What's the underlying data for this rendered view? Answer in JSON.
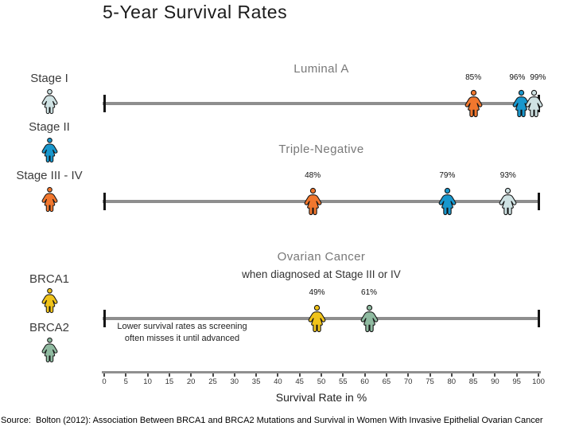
{
  "title": "5-Year Survival Rates",
  "legend": {
    "items": [
      {
        "label": "Stage I",
        "color": "#cfe2e3"
      },
      {
        "label": "Stage II",
        "color": "#1897cd"
      },
      {
        "label": "Stage III - IV",
        "color": "#f1772e"
      },
      {
        "label": "BRCA1",
        "color": "#f0c31a"
      },
      {
        "label": "BRCA2",
        "color": "#8fbaa0"
      }
    ]
  },
  "axis": {
    "min": 0,
    "max": 100,
    "step": 5,
    "label": "Survival Rate in %"
  },
  "chart_data": {
    "type": "scatter",
    "title": "5-Year Survival Rates",
    "xlabel": "Survival Rate in %",
    "xlim": [
      0,
      100
    ],
    "tick_step": 5,
    "grid": false,
    "legend_position": "left",
    "groups": [
      {
        "name": "Stage I",
        "color": "#cfe2e3"
      },
      {
        "name": "Stage II",
        "color": "#1897cd"
      },
      {
        "name": "Stage III - IV",
        "color": "#f1772e"
      },
      {
        "name": "BRCA1",
        "color": "#f0c31a"
      },
      {
        "name": "BRCA2",
        "color": "#8fbaa0"
      }
    ],
    "rows": [
      {
        "title": "Luminal A",
        "subtitle": "",
        "annotation": [],
        "points": [
          {
            "group": "Stage III - IV",
            "value": 85,
            "label": "85%"
          },
          {
            "group": "Stage II",
            "value": 96,
            "label": "96%"
          },
          {
            "group": "Stage I",
            "value": 99,
            "label": "99%"
          }
        ]
      },
      {
        "title": "Triple-Negative",
        "subtitle": "",
        "annotation": [],
        "points": [
          {
            "group": "Stage III - IV",
            "value": 48,
            "label": "48%"
          },
          {
            "group": "Stage II",
            "value": 79,
            "label": "79%"
          },
          {
            "group": "Stage I",
            "value": 93,
            "label": "93%"
          }
        ]
      },
      {
        "title": "Ovarian Cancer",
        "subtitle": "when diagnosed at Stage III or IV",
        "annotation": [
          "Lower survival rates as screening",
          "often misses it until advanced"
        ],
        "points": [
          {
            "group": "BRCA1",
            "value": 49,
            "label": "49%"
          },
          {
            "group": "BRCA2",
            "value": 61,
            "label": "61%"
          }
        ]
      }
    ]
  },
  "source": "Source:  Bolton (2012): Association Between BRCA1 and BRCA2 Mutations and Survival in Women With Invasive Epithelial Ovarian Cancer"
}
